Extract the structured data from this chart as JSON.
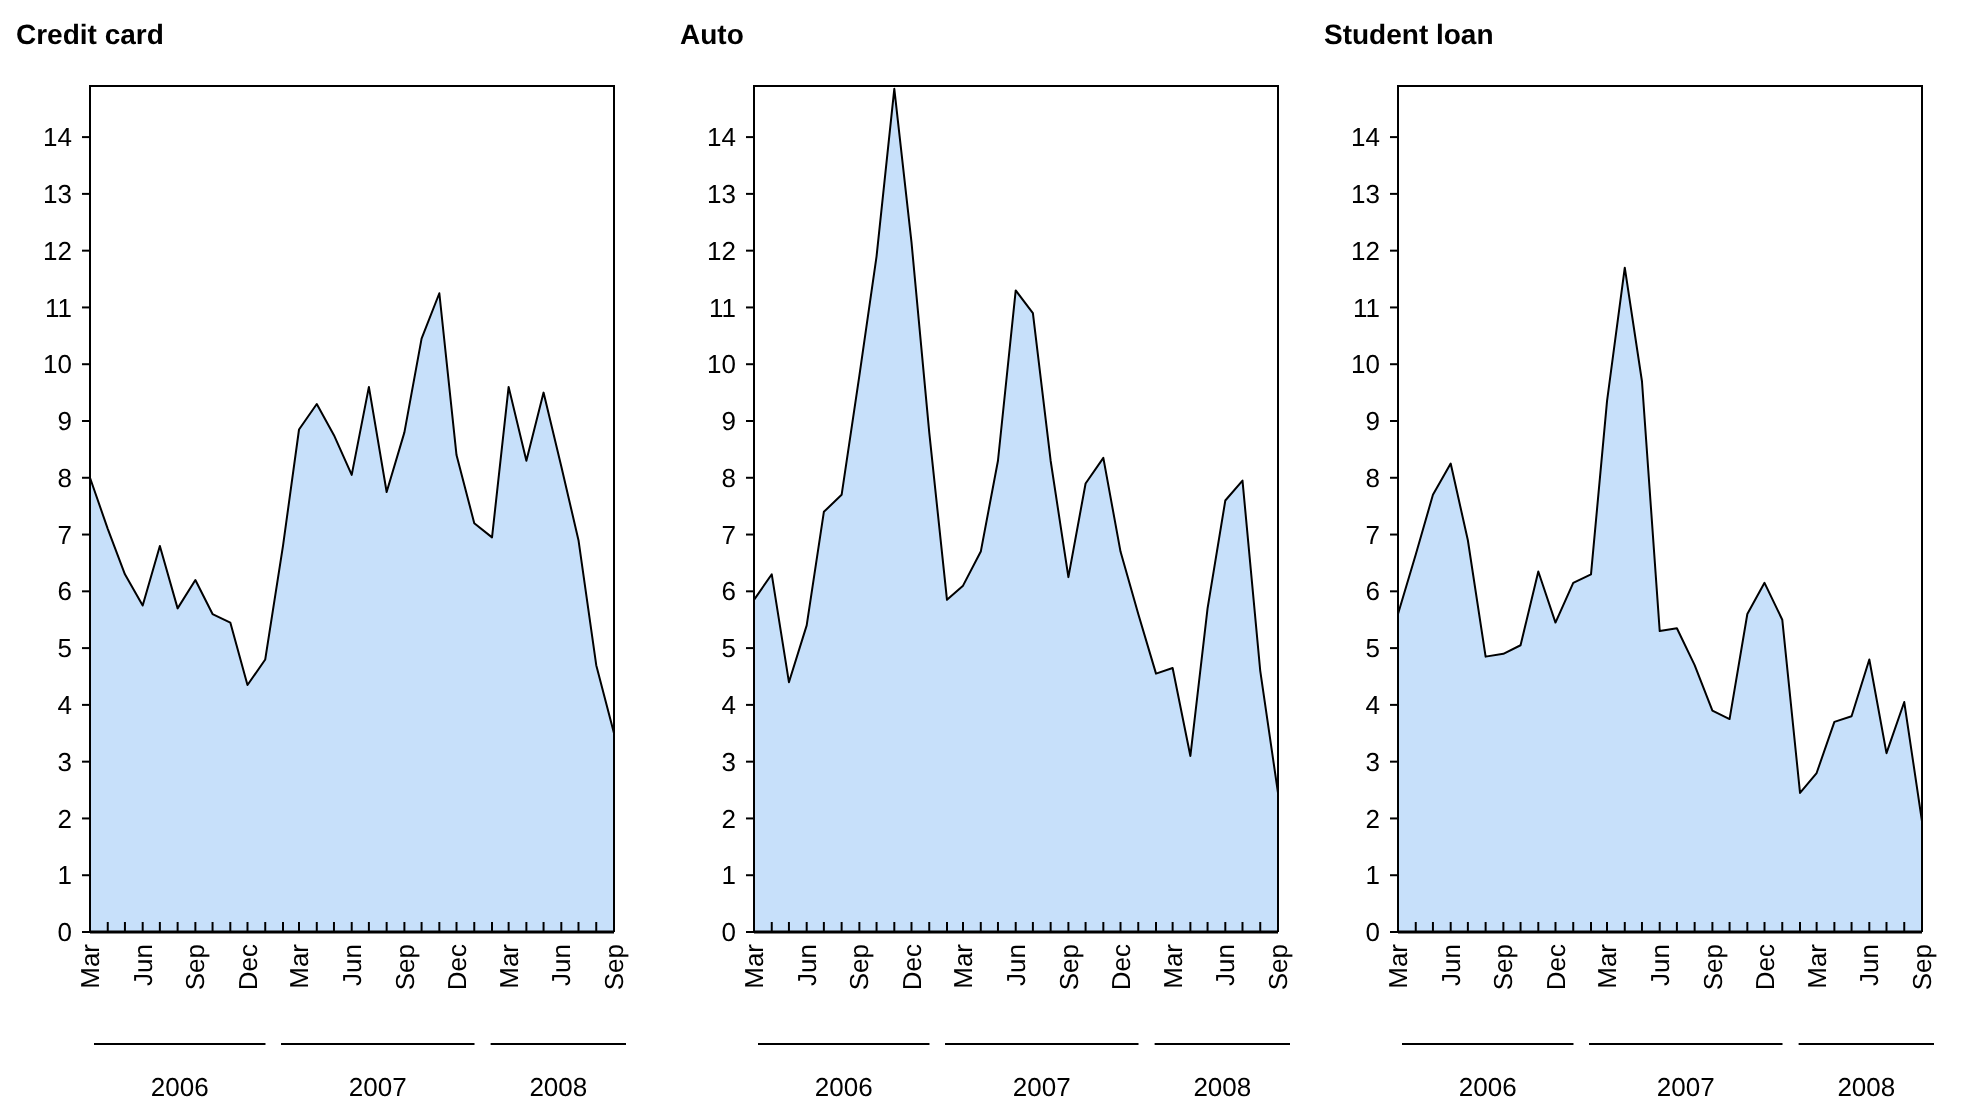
{
  "chart_data": [
    {
      "type": "area",
      "title": "Credit card",
      "x": [
        "2006-03",
        "2006-04",
        "2006-05",
        "2006-06",
        "2006-07",
        "2006-08",
        "2006-09",
        "2006-10",
        "2006-11",
        "2006-12",
        "2007-01",
        "2007-02",
        "2007-03",
        "2007-04",
        "2007-05",
        "2007-06",
        "2007-07",
        "2007-08",
        "2007-09",
        "2007-10",
        "2007-11",
        "2007-12",
        "2008-01",
        "2008-02",
        "2008-03",
        "2008-04",
        "2008-05",
        "2008-06",
        "2008-07",
        "2008-08",
        "2008-09"
      ],
      "series": [
        {
          "color": "#c7e0fa",
          "values": [
            8.0,
            7.1,
            6.3,
            5.75,
            6.8,
            5.7,
            6.2,
            5.6,
            5.45,
            4.35,
            4.8,
            6.8,
            8.85,
            9.3,
            8.75,
            8.05,
            9.6,
            7.75,
            8.8,
            10.45,
            11.25,
            8.4,
            7.2,
            6.95,
            9.6,
            8.3,
            9.5,
            8.2,
            6.9,
            4.7,
            3.5
          ]
        }
      ],
      "xlim": [
        "2006-03",
        "2008-09"
      ],
      "xticks": [
        {
          "value": "2006-03",
          "label": "Mar"
        },
        {
          "value": "2006-04",
          "label": null
        },
        {
          "value": "2006-05",
          "label": null
        },
        {
          "value": "2006-06",
          "label": "Jun"
        },
        {
          "value": "2006-07",
          "label": null
        },
        {
          "value": "2006-08",
          "label": null
        },
        {
          "value": "2006-09",
          "label": "Sep"
        },
        {
          "value": "2006-10",
          "label": null
        },
        {
          "value": "2006-11",
          "label": null
        },
        {
          "value": "2006-12",
          "label": "Dec"
        },
        {
          "value": "2007-01",
          "label": null
        },
        {
          "value": "2007-02",
          "label": null
        },
        {
          "value": "2007-03",
          "label": "Mar"
        },
        {
          "value": "2007-04",
          "label": null
        },
        {
          "value": "2007-05",
          "label": null
        },
        {
          "value": "2007-06",
          "label": "Jun"
        },
        {
          "value": "2007-07",
          "label": null
        },
        {
          "value": "2007-08",
          "label": null
        },
        {
          "value": "2007-09",
          "label": "Sep"
        },
        {
          "value": "2007-10",
          "label": null
        },
        {
          "value": "2007-11",
          "label": null
        },
        {
          "value": "2007-12",
          "label": "Dec"
        },
        {
          "value": "2008-01",
          "label": null
        },
        {
          "value": "2008-02",
          "label": null
        },
        {
          "value": "2008-03",
          "label": "Mar"
        },
        {
          "value": "2008-04",
          "label": null
        },
        {
          "value": "2008-05",
          "label": null
        },
        {
          "value": "2008-06",
          "label": "Jun"
        },
        {
          "value": "2008-07",
          "label": null
        },
        {
          "value": "2008-08",
          "label": null
        },
        {
          "value": "2008-09",
          "label": "Sep"
        }
      ],
      "ylim": [
        0,
        14.9
      ],
      "yticks": [
        0,
        1,
        2,
        3,
        4,
        5,
        6,
        7,
        8,
        9,
        10,
        11,
        12,
        13,
        14
      ],
      "annotations": [
        "2006",
        "2007",
        "2008"
      ]
    },
    {
      "type": "area",
      "title": "Auto",
      "x": [
        "2006-03",
        "2006-04",
        "2006-05",
        "2006-06",
        "2006-07",
        "2006-08",
        "2006-09",
        "2006-10",
        "2006-11",
        "2006-12",
        "2007-01",
        "2007-02",
        "2007-03",
        "2007-04",
        "2007-05",
        "2007-06",
        "2007-07",
        "2007-08",
        "2007-09",
        "2007-10",
        "2007-11",
        "2007-12",
        "2008-01",
        "2008-02",
        "2008-03",
        "2008-04",
        "2008-05",
        "2008-06",
        "2008-07",
        "2008-08",
        "2008-09"
      ],
      "series": [
        {
          "color": "#c7e0fa",
          "values": [
            5.85,
            6.3,
            4.4,
            5.4,
            7.4,
            7.7,
            9.8,
            11.9,
            14.85,
            12.15,
            8.8,
            5.85,
            6.1,
            6.7,
            8.3,
            11.3,
            10.9,
            8.3,
            6.25,
            7.9,
            8.35,
            6.7,
            5.6,
            4.55,
            4.65,
            3.1,
            5.7,
            7.6,
            7.95,
            4.6,
            2.45
          ]
        }
      ],
      "xlim": [
        "2006-03",
        "2008-09"
      ],
      "xticks": [
        {
          "value": "2006-03",
          "label": "Mar"
        },
        {
          "value": "2006-04",
          "label": null
        },
        {
          "value": "2006-05",
          "label": null
        },
        {
          "value": "2006-06",
          "label": "Jun"
        },
        {
          "value": "2006-07",
          "label": null
        },
        {
          "value": "2006-08",
          "label": null
        },
        {
          "value": "2006-09",
          "label": "Sep"
        },
        {
          "value": "2006-10",
          "label": null
        },
        {
          "value": "2006-11",
          "label": null
        },
        {
          "value": "2006-12",
          "label": "Dec"
        },
        {
          "value": "2007-01",
          "label": null
        },
        {
          "value": "2007-02",
          "label": null
        },
        {
          "value": "2007-03",
          "label": "Mar"
        },
        {
          "value": "2007-04",
          "label": null
        },
        {
          "value": "2007-05",
          "label": null
        },
        {
          "value": "2007-06",
          "label": "Jun"
        },
        {
          "value": "2007-07",
          "label": null
        },
        {
          "value": "2007-08",
          "label": null
        },
        {
          "value": "2007-09",
          "label": "Sep"
        },
        {
          "value": "2007-10",
          "label": null
        },
        {
          "value": "2007-11",
          "label": null
        },
        {
          "value": "2007-12",
          "label": "Dec"
        },
        {
          "value": "2008-01",
          "label": null
        },
        {
          "value": "2008-02",
          "label": null
        },
        {
          "value": "2008-03",
          "label": "Mar"
        },
        {
          "value": "2008-04",
          "label": null
        },
        {
          "value": "2008-05",
          "label": null
        },
        {
          "value": "2008-06",
          "label": "Jun"
        },
        {
          "value": "2008-07",
          "label": null
        },
        {
          "value": "2008-08",
          "label": null
        },
        {
          "value": "2008-09",
          "label": "Sep"
        }
      ],
      "ylim": [
        0,
        14.9
      ],
      "yticks": [
        0,
        1,
        2,
        3,
        4,
        5,
        6,
        7,
        8,
        9,
        10,
        11,
        12,
        13,
        14
      ],
      "annotations": [
        "2006",
        "2007",
        "2008"
      ]
    },
    {
      "type": "area",
      "title": "Student loan",
      "x": [
        "2006-03",
        "2006-04",
        "2006-05",
        "2006-06",
        "2006-07",
        "2006-08",
        "2006-09",
        "2006-10",
        "2006-11",
        "2006-12",
        "2007-01",
        "2007-02",
        "2007-03",
        "2007-04",
        "2007-05",
        "2007-06",
        "2007-07",
        "2007-08",
        "2007-09",
        "2007-10",
        "2007-11",
        "2007-12",
        "2008-01",
        "2008-02",
        "2008-03",
        "2008-04",
        "2008-05",
        "2008-06",
        "2008-07",
        "2008-08",
        "2008-09"
      ],
      "series": [
        {
          "color": "#c7e0fa",
          "values": [
            5.6,
            6.65,
            7.7,
            8.25,
            6.9,
            4.85,
            4.9,
            5.05,
            6.35,
            5.45,
            6.15,
            6.3,
            9.35,
            11.7,
            9.7,
            5.3,
            5.35,
            4.7,
            3.9,
            3.75,
            5.6,
            6.15,
            5.5,
            2.45,
            2.8,
            3.7,
            3.8,
            4.8,
            3.15,
            4.05,
            1.95
          ]
        }
      ],
      "xlim": [
        "2006-03",
        "2008-09"
      ],
      "xticks": [
        {
          "value": "2006-03",
          "label": "Mar"
        },
        {
          "value": "2006-04",
          "label": null
        },
        {
          "value": "2006-05",
          "label": null
        },
        {
          "value": "2006-06",
          "label": "Jun"
        },
        {
          "value": "2006-07",
          "label": null
        },
        {
          "value": "2006-08",
          "label": null
        },
        {
          "value": "2006-09",
          "label": "Sep"
        },
        {
          "value": "2006-10",
          "label": null
        },
        {
          "value": "2006-11",
          "label": null
        },
        {
          "value": "2006-12",
          "label": "Dec"
        },
        {
          "value": "2007-01",
          "label": null
        },
        {
          "value": "2007-02",
          "label": null
        },
        {
          "value": "2007-03",
          "label": "Mar"
        },
        {
          "value": "2007-04",
          "label": null
        },
        {
          "value": "2007-05",
          "label": null
        },
        {
          "value": "2007-06",
          "label": "Jun"
        },
        {
          "value": "2007-07",
          "label": null
        },
        {
          "value": "2007-08",
          "label": null
        },
        {
          "value": "2007-09",
          "label": "Sep"
        },
        {
          "value": "2007-10",
          "label": null
        },
        {
          "value": "2007-11",
          "label": null
        },
        {
          "value": "2007-12",
          "label": "Dec"
        },
        {
          "value": "2008-01",
          "label": null
        },
        {
          "value": "2008-02",
          "label": null
        },
        {
          "value": "2008-03",
          "label": "Mar"
        },
        {
          "value": "2008-04",
          "label": null
        },
        {
          "value": "2008-05",
          "label": null
        },
        {
          "value": "2008-06",
          "label": "Jun"
        },
        {
          "value": "2008-07",
          "label": null
        },
        {
          "value": "2008-08",
          "label": null
        },
        {
          "value": "2008-09",
          "label": "Sep"
        }
      ],
      "ylim": [
        0,
        14.9
      ],
      "yticks": [
        0,
        1,
        2,
        3,
        4,
        5,
        6,
        7,
        8,
        9,
        10,
        11,
        12,
        13,
        14
      ],
      "annotations": [
        "2006",
        "2007",
        "2008"
      ]
    }
  ]
}
